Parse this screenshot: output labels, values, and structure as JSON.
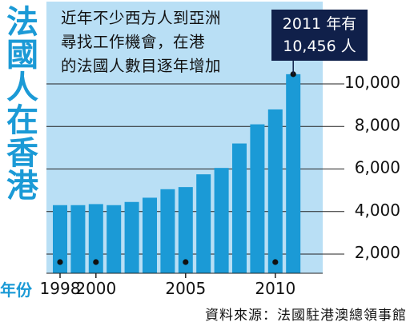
{
  "title": "法國人在香港",
  "subtitle_lines": [
    "近年不少西方人到亞洲",
    "尋找工作機會，在港",
    "的法國人數目逐年增加"
  ],
  "callout_lines": [
    "2011 年有",
    "10,456 人"
  ],
  "xlabel_unit": "年份",
  "source": "資料來源：法國駐港澳總領事館",
  "colors": {
    "panel": "#b9dff5",
    "bar": "#1b9ad6",
    "title": "#1b9ad6",
    "callout_bg": "#10204a",
    "dot": "#111111"
  },
  "chart_data": {
    "type": "bar",
    "categories": [
      "1998",
      "1999",
      "2000",
      "2001",
      "2002",
      "2003",
      "2004",
      "2005",
      "2006",
      "2007",
      "2008",
      "2009",
      "2010",
      "2011"
    ],
    "values": [
      4300,
      4300,
      4350,
      4300,
      4450,
      4650,
      5050,
      5150,
      5750,
      6050,
      7200,
      8100,
      8800,
      10456
    ],
    "x_tick_labels": [
      "1998",
      "2000",
      "2005",
      "2010"
    ],
    "y_tick_labels": [
      "2,000",
      "4,000",
      "6,000",
      "8,000",
      "10,000"
    ],
    "y_tick_values": [
      2000,
      4000,
      6000,
      8000,
      10000
    ],
    "ylim": [
      0,
      12000
    ],
    "marked_years": [
      "1998",
      "2000",
      "2005",
      "2010",
      "2011"
    ],
    "grid": true,
    "legend": "none"
  }
}
